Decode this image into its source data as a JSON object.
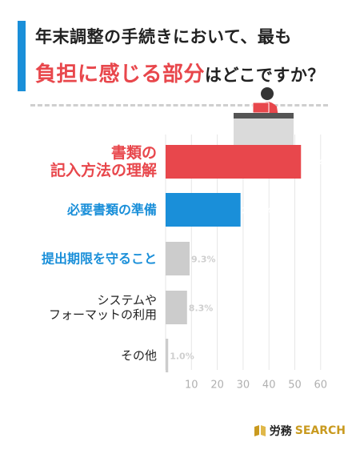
{
  "title": {
    "line1": "年末調整の手続きにおいて、最も",
    "line2_highlight": "負担に感じる部分",
    "line2_rest": "はどこですか？"
  },
  "brand": {
    "name_jp": "労務",
    "name_en": "SEARCH"
  },
  "colors": {
    "accent": "#1a8fd9",
    "highlight_red": "#e8474c",
    "highlight_blue": "#1a8fd9",
    "bar_gray": "#cccccc",
    "text_dark": "#222222",
    "value_gray": "#cfcfcf"
  },
  "chart_data": {
    "type": "bar",
    "orientation": "horizontal",
    "categories": [
      [
        "書類の",
        "記入方法の理解"
      ],
      [
        "必要書類の準備"
      ],
      [
        "提出期限を守ること"
      ],
      [
        "システムや",
        "フォーマットの利用"
      ],
      [
        "その他"
      ]
    ],
    "values": [
      52.4,
      29.0,
      9.3,
      8.3,
      1.0
    ],
    "value_labels": [
      "52.4%",
      "29.0%",
      "9.3%",
      "8.3%",
      "1.0%"
    ],
    "bar_colors": [
      "#e8474c",
      "#1a8fd9",
      "#cccccc",
      "#cccccc",
      "#cccccc"
    ],
    "label_colors": [
      "#e8474c",
      "#1a8fd9",
      "#1a8fd9",
      "#222222",
      "#222222"
    ],
    "value_label_colors": [
      "#ffffff",
      "#ffffff",
      "#cfcfcf",
      "#cfcfcf",
      "#cfcfcf"
    ],
    "x_ticks": [
      "10",
      "20",
      "30",
      "40",
      "50",
      "60"
    ],
    "xlim": [
      0,
      60
    ],
    "grid": true
  }
}
